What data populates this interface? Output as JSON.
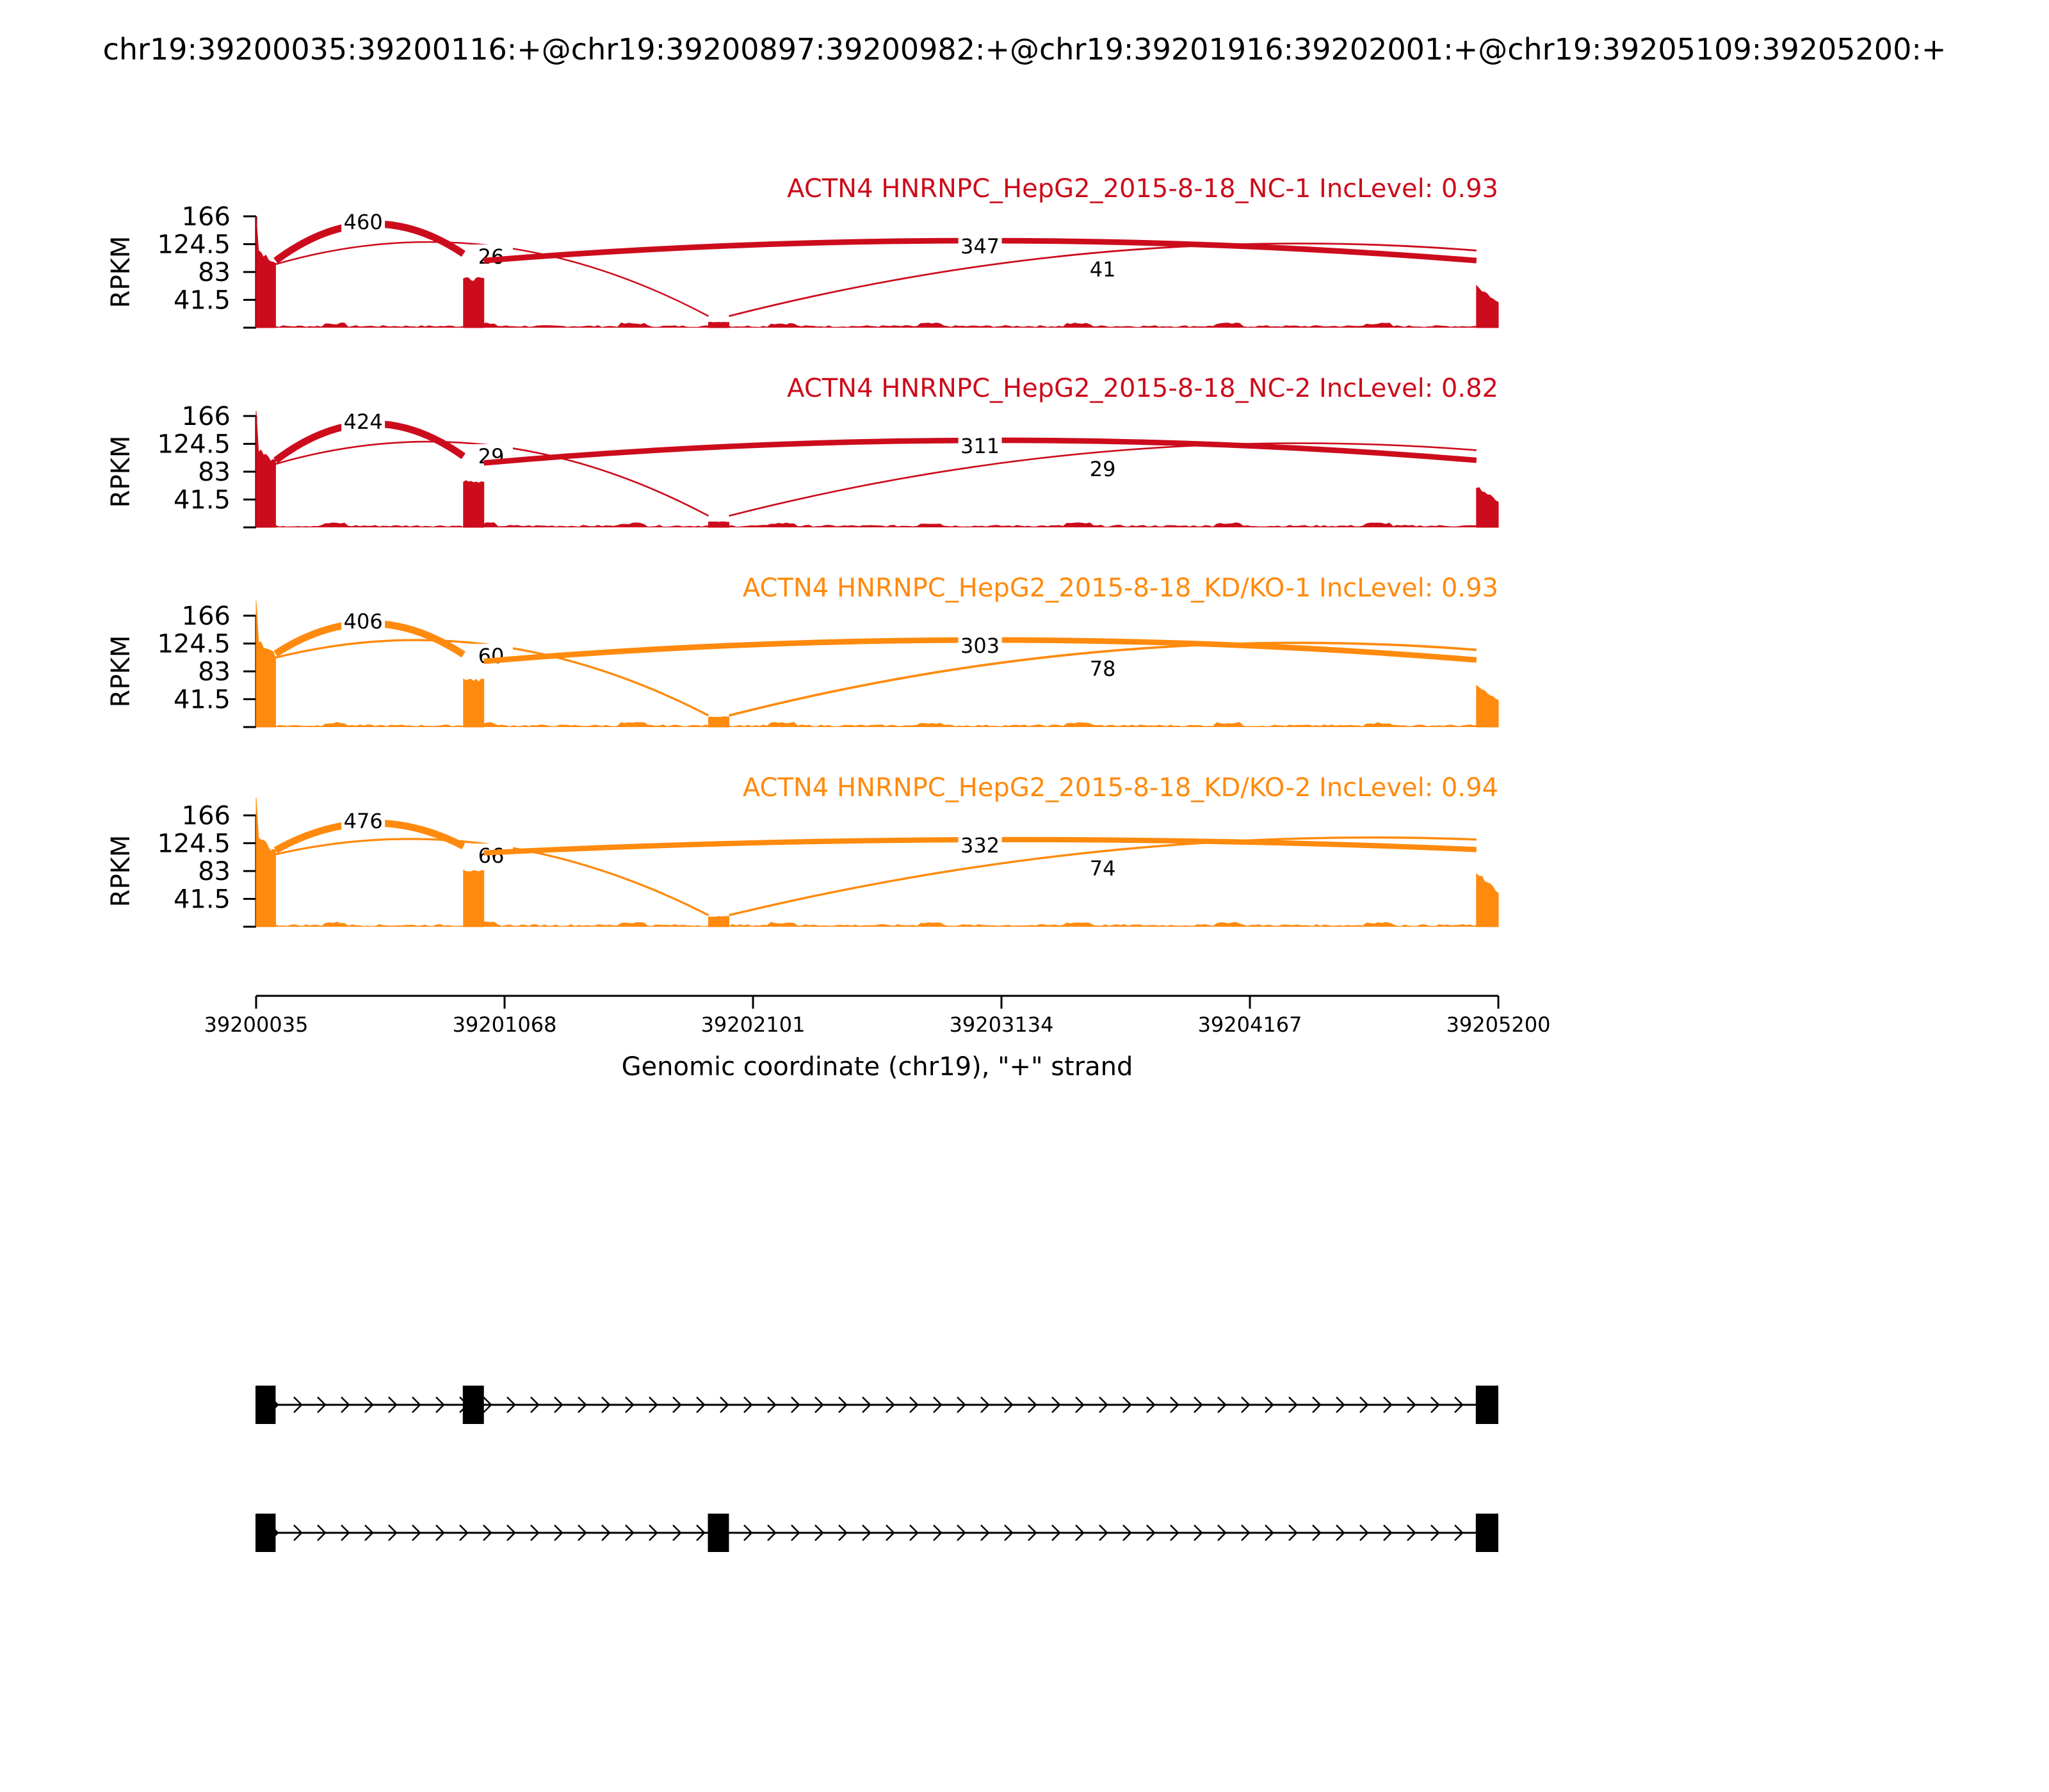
{
  "title": "chr19:39200035:39200116:+@chr19:39200897:39200982:+@chr19:39201916:39202001:+@chr19:39205109:39205200:+",
  "x_axis": {
    "label": "Genomic coordinate (chr19), \"+\" strand",
    "ticks": [
      "39200035",
      "39201068",
      "39202101",
      "39203134",
      "39204167",
      "39205200"
    ],
    "tick_values": [
      39200035,
      39201068,
      39202101,
      39203134,
      39204167,
      39205200
    ]
  },
  "y_axis": {
    "label": "RPKM",
    "ticks": [
      "166",
      "124.5",
      "83",
      "41.5"
    ],
    "tick_values": [
      166,
      124.5,
      83,
      41.5
    ],
    "ylim": [
      0,
      166
    ]
  },
  "colors": {
    "nc": "#cc0c1c",
    "kd": "#ff8a0d",
    "gene_model": "#000000"
  },
  "chart_data": {
    "type": "sashimi",
    "xlim": [
      39200035,
      39205200
    ],
    "exons": [
      {
        "start": 39200035,
        "end": 39200116
      },
      {
        "start": 39200897,
        "end": 39200982
      },
      {
        "start": 39201916,
        "end": 39202001
      },
      {
        "start": 39205109,
        "end": 39205200
      }
    ],
    "coverage_ylim": [
      0,
      166
    ],
    "tracks": [
      {
        "name": "ACTN4 HNRNPC_HepG2_2015-8-18_NC-1 IncLevel: 0.93",
        "color": "#cc0c1c",
        "exon_coverage": [
          105,
          72,
          8,
          45
        ],
        "junctions": [
          {
            "start": 39200116,
            "end": 39200897,
            "count": 460,
            "label": "460"
          },
          {
            "start": 39200116,
            "end": 39201916,
            "count": 26,
            "label": "26"
          },
          {
            "start": 39200982,
            "end": 39205109,
            "count": 347,
            "label": "347"
          },
          {
            "start": 39202001,
            "end": 39205109,
            "count": 41,
            "label": "41"
          }
        ]
      },
      {
        "name": "ACTN4 HNRNPC_HepG2_2015-8-18_NC-2 IncLevel: 0.82",
        "color": "#cc0c1c",
        "exon_coverage": [
          105,
          68,
          8,
          45
        ],
        "junctions": [
          {
            "start": 39200116,
            "end": 39200897,
            "count": 424,
            "label": "424"
          },
          {
            "start": 39200116,
            "end": 39201916,
            "count": 29,
            "label": "29"
          },
          {
            "start": 39200982,
            "end": 39205109,
            "count": 311,
            "label": "311"
          },
          {
            "start": 39202001,
            "end": 39205109,
            "count": 29,
            "label": "29"
          }
        ]
      },
      {
        "name": "ACTN4 HNRNPC_HepG2_2015-8-18_KD/KO-1 IncLevel: 0.93",
        "color": "#ff8a0d",
        "exon_coverage": [
          115,
          70,
          15,
          45
        ],
        "junctions": [
          {
            "start": 39200116,
            "end": 39200897,
            "count": 406,
            "label": "406"
          },
          {
            "start": 39200116,
            "end": 39201916,
            "count": 60,
            "label": "60"
          },
          {
            "start": 39200982,
            "end": 39205109,
            "count": 303,
            "label": "303"
          },
          {
            "start": 39202001,
            "end": 39205109,
            "count": 78,
            "label": "78"
          }
        ]
      },
      {
        "name": "ACTN4 HNRNPC_HepG2_2015-8-18_KD/KO-2 IncLevel: 0.94",
        "color": "#ff8a0d",
        "exon_coverage": [
          120,
          82,
          15,
          60
        ],
        "junctions": [
          {
            "start": 39200116,
            "end": 39200897,
            "count": 476,
            "label": "476"
          },
          {
            "start": 39200116,
            "end": 39201916,
            "count": 66,
            "label": "66"
          },
          {
            "start": 39200982,
            "end": 39205109,
            "count": 332,
            "label": "332"
          },
          {
            "start": 39202001,
            "end": 39205109,
            "count": 74,
            "label": "74"
          }
        ]
      }
    ],
    "isoforms": [
      {
        "exons": [
          [
            39200035,
            39200116
          ],
          [
            39200897,
            39200982
          ],
          [
            39205109,
            39205200
          ]
        ]
      },
      {
        "exons": [
          [
            39200035,
            39200116
          ],
          [
            39201916,
            39202001
          ],
          [
            39205109,
            39205200
          ]
        ]
      }
    ]
  }
}
